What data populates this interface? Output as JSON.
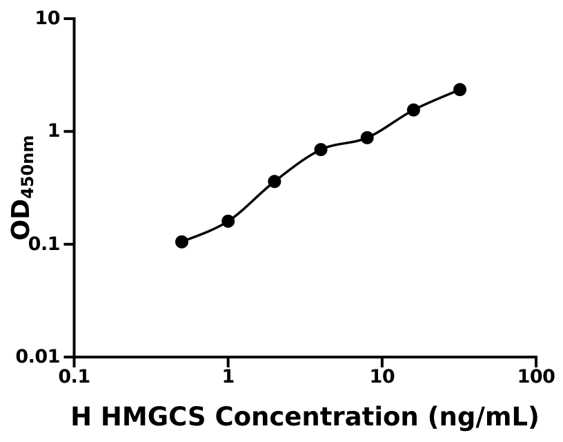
{
  "colors": {
    "foreground": "#000000",
    "background": "#ffffff"
  },
  "axes_titles": {
    "x_title": "H HMGCS Concentration (ng/mL)",
    "y_title_main": "OD",
    "y_title_sub": "450nm"
  },
  "chart_data": {
    "type": "scatter",
    "title": "",
    "xlabel": "H HMGCS Concentration (ng/mL)",
    "ylabel": "OD450nm",
    "xscale": "log",
    "yscale": "log",
    "xlim": [
      0.1,
      100
    ],
    "ylim": [
      0.01,
      10
    ],
    "x_tick_labels": [
      "0.1",
      "1",
      "10",
      "100"
    ],
    "y_tick_labels": [
      "0.01",
      "0.1",
      "1",
      "10"
    ],
    "grid": false,
    "legend": false,
    "marker": {
      "shape": "circle",
      "color": "#000000",
      "radius_px": 9.5
    },
    "fit_curve": true,
    "x": [
      0.5,
      1,
      2,
      4,
      8,
      16,
      32
    ],
    "y": [
      0.105,
      0.16,
      0.36,
      0.69,
      0.88,
      1.55,
      2.35
    ]
  }
}
